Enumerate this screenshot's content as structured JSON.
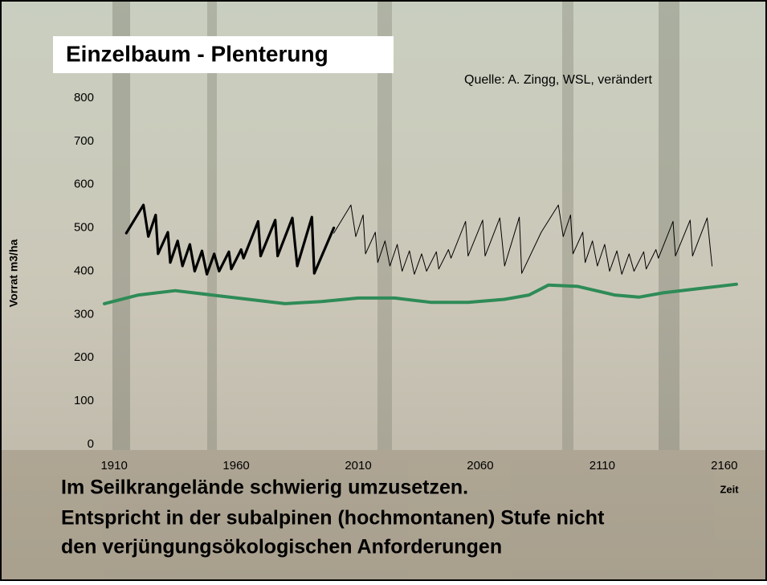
{
  "chart_data": {
    "type": "line",
    "title": "Einzelbaum - Plenterung",
    "source": "Quelle: A. Zingg, WSL, verändert",
    "y_label": "Vorrat m3/ha",
    "x_label": "Zeit",
    "xlim": [
      1906,
      2165
    ],
    "xticks": [
      1910,
      1960,
      2010,
      2060,
      2110,
      2160
    ],
    "ylim": [
      0,
      800
    ],
    "yticks": [
      0,
      100,
      200,
      300,
      400,
      500,
      600,
      700,
      800
    ],
    "grid": false,
    "series": [
      {
        "color": "#000000",
        "width": 3.2,
        "x": [
          1915,
          1922,
          1924,
          1927,
          1928,
          1932,
          1933,
          1936,
          1938,
          1941,
          1943,
          1946,
          1948,
          1951,
          1953,
          1957,
          1958,
          1962,
          1963,
          1969,
          1970,
          1976,
          1977,
          1983,
          1985,
          1991,
          1992,
          2000
        ],
        "values": [
          488,
          553,
          480,
          530,
          440,
          490,
          420,
          470,
          412,
          462,
          400,
          447,
          393,
          440,
          400,
          445,
          405,
          450,
          430,
          515,
          435,
          518,
          435,
          523,
          412,
          525,
          395,
          500
        ]
      },
      {
        "color": "#000000",
        "width": 1,
        "x": [
          2000,
          2007,
          2009,
          2012,
          2013,
          2017,
          2018,
          2021,
          2023,
          2026,
          2028,
          2031,
          2033,
          2036,
          2038,
          2042,
          2043,
          2047,
          2048,
          2054,
          2055,
          2061,
          2062,
          2068,
          2070,
          2076,
          2077,
          2085,
          2092,
          2094,
          2097,
          2098,
          2102,
          2103,
          2106,
          2108,
          2111,
          2113,
          2116,
          2118,
          2121,
          2123,
          2127,
          2128,
          2132,
          2133,
          2139,
          2140,
          2146,
          2147,
          2153,
          2155
        ],
        "values": [
          488,
          553,
          480,
          530,
          440,
          490,
          420,
          470,
          412,
          462,
          400,
          447,
          393,
          440,
          400,
          445,
          405,
          450,
          430,
          515,
          435,
          518,
          435,
          523,
          412,
          525,
          395,
          490,
          553,
          480,
          530,
          440,
          490,
          420,
          470,
          412,
          462,
          400,
          447,
          393,
          440,
          400,
          445,
          405,
          450,
          430,
          515,
          435,
          518,
          435,
          523,
          412
        ]
      },
      {
        "color": "#2e8b57",
        "width": 4,
        "x": [
          1906,
          1920,
          1935,
          1950,
          1965,
          1980,
          1995,
          2010,
          2025,
          2040,
          2055,
          2070,
          2080,
          2088,
          2100,
          2115,
          2125,
          2135,
          2150,
          2165
        ],
        "values": [
          325,
          345,
          355,
          345,
          335,
          325,
          330,
          338,
          338,
          328,
          328,
          335,
          345,
          368,
          365,
          345,
          340,
          350,
          360,
          370
        ]
      }
    ]
  },
  "text_lines": [
    "Im Seilkrangelände schwierig umzusetzen.",
    "Entspricht in der subalpinen (hochmontanen) Stufe nicht",
    "den verjüngungsökologischen Anforderungen"
  ]
}
